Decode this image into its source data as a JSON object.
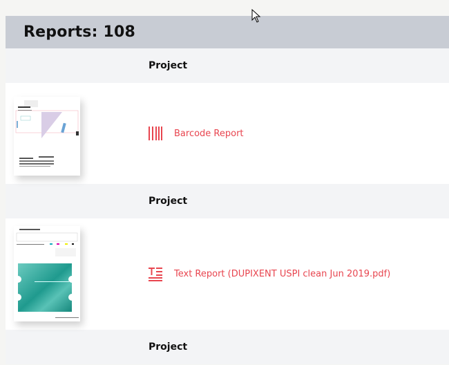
{
  "header": {
    "title": "Reports: 108"
  },
  "groups": [
    {
      "label": "Project"
    },
    {
      "label": "Project"
    },
    {
      "label": "Project"
    }
  ],
  "reports": [
    {
      "label": "Barcode Report",
      "icon": "barcode-icon"
    },
    {
      "label": "Text Report (DUPIXENT USPI clean Jun 2019.pdf)",
      "icon": "text-report-icon"
    }
  ],
  "colors": {
    "accent": "#e8454f",
    "header_bg": "#c8ccd4",
    "group_bg": "#f3f4f6",
    "thumb_teal": "#1f9a8e"
  }
}
